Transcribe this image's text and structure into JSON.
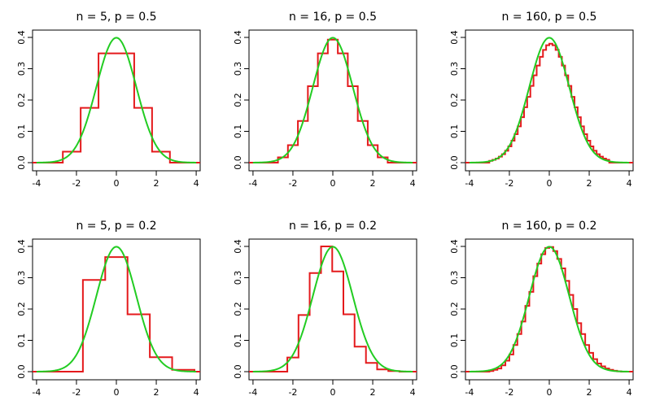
{
  "colors": {
    "histogram": "#e41a1c",
    "normal_curve": "#22cc22",
    "axes": "#000000"
  },
  "chart_data": [
    {
      "type": "line",
      "title": "n = 5, p = 0.5",
      "xlim": [
        -4.2,
        4.2
      ],
      "ylim": [
        0,
        0.4
      ],
      "x_ticks": [
        -4,
        -2,
        0,
        2,
        4
      ],
      "x_tick_labels": [
        "-4",
        "-2",
        "0",
        "2",
        "4"
      ],
      "y_ticks": [
        0,
        0.1,
        0.2,
        0.3,
        0.4
      ],
      "y_tick_labels": [
        "0.0",
        "0.1",
        "0.2",
        "0.3",
        "0.4"
      ],
      "series": [
        {
          "kind": "step_histogram",
          "edges": [
            -4.2,
            -2.683,
            -1.789,
            -0.894,
            0.894,
            1.789,
            2.683,
            4.2
          ],
          "heights": [
            0,
            0.035,
            0.175,
            0.349,
            0.175,
            0.035,
            0
          ]
        },
        {
          "kind": "normal_density",
          "mean": 0,
          "sd": 1,
          "x_range": [
            -4,
            4
          ]
        }
      ]
    },
    {
      "type": "line",
      "title": "n = 16, p = 0.5",
      "xlim": [
        -4.2,
        4.2
      ],
      "ylim": [
        0,
        0.4
      ],
      "x_ticks": [
        -4,
        -2,
        0,
        2,
        4
      ],
      "x_tick_labels": [
        "-4",
        "-2",
        "0",
        "2",
        "4"
      ],
      "y_ticks": [
        0,
        0.1,
        0.2,
        0.3,
        0.4
      ],
      "y_tick_labels": [
        "0.0",
        "0.1",
        "0.2",
        "0.3",
        "0.4"
      ],
      "series": [
        {
          "kind": "step_histogram",
          "edges": [
            -4.2,
            -2.75,
            -2.25,
            -1.75,
            -1.25,
            -0.75,
            -0.25,
            0.25,
            0.75,
            1.25,
            1.75,
            2.25,
            2.75,
            4.2
          ],
          "heights": [
            0,
            0.017,
            0.056,
            0.133,
            0.244,
            0.349,
            0.393,
            0.349,
            0.244,
            0.133,
            0.056,
            0.017,
            0
          ]
        },
        {
          "kind": "normal_density",
          "mean": 0,
          "sd": 1,
          "x_range": [
            -4,
            4
          ]
        }
      ]
    },
    {
      "type": "line",
      "title": "n = 160, p = 0.5",
      "xlim": [
        -4.2,
        4.2
      ],
      "ylim": [
        0,
        0.4
      ],
      "x_ticks": [
        -4,
        -2,
        0,
        2,
        4
      ],
      "x_tick_labels": [
        "-4",
        "-2",
        "0",
        "2",
        "4"
      ],
      "y_ticks": [
        0,
        0.1,
        0.2,
        0.3,
        0.4
      ],
      "y_tick_labels": [
        "0.0",
        "0.1",
        "0.2",
        "0.3",
        "0.4"
      ],
      "series": [
        {
          "kind": "step_histogram",
          "edges": [
            -4.2,
            -3.004,
            -2.846,
            -2.688,
            -2.53,
            -2.372,
            -2.213,
            -2.055,
            -1.897,
            -1.739,
            -1.581,
            -1.423,
            -1.265,
            -1.107,
            -0.949,
            -0.791,
            -0.632,
            -0.474,
            -0.316,
            -0.158,
            0.0,
            0.158,
            0.316,
            0.474,
            0.632,
            0.791,
            0.949,
            1.107,
            1.265,
            1.423,
            1.581,
            1.739,
            1.897,
            2.055,
            2.213,
            2.372,
            2.53,
            2.688,
            2.846,
            3.004,
            4.2
          ],
          "heights": [
            0,
            0.006,
            0.009,
            0.013,
            0.019,
            0.027,
            0.038,
            0.052,
            0.07,
            0.091,
            0.116,
            0.145,
            0.177,
            0.21,
            0.245,
            0.279,
            0.31,
            0.338,
            0.36,
            0.375,
            0.38,
            0.375,
            0.36,
            0.338,
            0.31,
            0.279,
            0.245,
            0.21,
            0.177,
            0.145,
            0.116,
            0.091,
            0.07,
            0.052,
            0.038,
            0.027,
            0.019,
            0.013,
            0.009,
            0
          ]
        },
        {
          "kind": "normal_density",
          "mean": 0,
          "sd": 1,
          "x_range": [
            -4,
            4
          ]
        }
      ]
    },
    {
      "type": "line",
      "title": "n = 5, p = 0.2",
      "xlim": [
        -4.2,
        4.2
      ],
      "ylim": [
        0,
        0.4
      ],
      "x_ticks": [
        -4,
        -2,
        0,
        2,
        4
      ],
      "x_tick_labels": [
        "-4",
        "-2",
        "0",
        "2",
        "4"
      ],
      "y_ticks": [
        0,
        0.1,
        0.2,
        0.3,
        0.4
      ],
      "y_tick_labels": [
        "0.0",
        "0.1",
        "0.2",
        "0.3",
        "0.4"
      ],
      "series": [
        {
          "kind": "step_histogram",
          "edges": [
            -4.2,
            -1.677,
            -0.559,
            0.559,
            1.677,
            2.795,
            3.913,
            4.2
          ],
          "heights": [
            0,
            0.293,
            0.366,
            0.183,
            0.046,
            0.006,
            0
          ]
        },
        {
          "kind": "normal_density",
          "mean": 0,
          "sd": 1,
          "x_range": [
            -4,
            4
          ]
        }
      ]
    },
    {
      "type": "line",
      "title": "n = 16, p = 0.2",
      "xlim": [
        -4.2,
        4.2
      ],
      "ylim": [
        0,
        0.4
      ],
      "x_ticks": [
        -4,
        -2,
        0,
        2,
        4
      ],
      "x_tick_labels": [
        "-4",
        "-2",
        "0",
        "2",
        "4"
      ],
      "y_ticks": [
        0,
        0.1,
        0.2,
        0.3,
        0.4
      ],
      "y_tick_labels": [
        "0.0",
        "0.1",
        "0.2",
        "0.3",
        "0.4"
      ],
      "series": [
        {
          "kind": "step_histogram",
          "edges": [
            -4.2,
            -2.28,
            -1.72,
            -1.16,
            -0.59,
            -0.03,
            0.53,
            1.09,
            1.66,
            2.22,
            2.78,
            3.34,
            3.91,
            4.2
          ],
          "heights": [
            0,
            0.045,
            0.181,
            0.315,
            0.4,
            0.32,
            0.183,
            0.08,
            0.028,
            0.007,
            0.002,
            0.0,
            0
          ]
        },
        {
          "kind": "normal_density",
          "mean": 0,
          "sd": 1,
          "x_range": [
            -4,
            4
          ]
        }
      ]
    },
    {
      "type": "line",
      "title": "n = 160, p = 0.2",
      "xlim": [
        -4.2,
        4.2
      ],
      "ylim": [
        0,
        0.4
      ],
      "x_ticks": [
        -4,
        -2,
        0,
        2,
        4
      ],
      "x_tick_labels": [
        "-4",
        "-2",
        "0",
        "2",
        "4"
      ],
      "y_ticks": [
        0,
        0.1,
        0.2,
        0.3,
        0.4
      ],
      "y_tick_labels": [
        "0.0",
        "0.1",
        "0.2",
        "0.3",
        "0.4"
      ],
      "series": [
        {
          "kind": "step_histogram",
          "edges": [
            -4.2,
            -3.0,
            -2.8,
            -2.6,
            -2.4,
            -2.2,
            -2.0,
            -1.8,
            -1.6,
            -1.4,
            -1.2,
            -1.0,
            -0.8,
            -0.6,
            -0.4,
            -0.2,
            0.0,
            0.2,
            0.4,
            0.6,
            0.8,
            1.0,
            1.2,
            1.4,
            1.6,
            1.8,
            2.0,
            2.2,
            2.4,
            2.6,
            2.8,
            3.0,
            3.2,
            3.4,
            3.6,
            4.2
          ],
          "heights": [
            0,
            0.002,
            0.006,
            0.01,
            0.02,
            0.035,
            0.055,
            0.085,
            0.12,
            0.16,
            0.21,
            0.255,
            0.305,
            0.345,
            0.375,
            0.395,
            0.398,
            0.385,
            0.36,
            0.33,
            0.29,
            0.245,
            0.2,
            0.155,
            0.12,
            0.085,
            0.06,
            0.04,
            0.026,
            0.017,
            0.01,
            0.006,
            0.003,
            0.001,
            0
          ]
        },
        {
          "kind": "normal_density",
          "mean": 0,
          "sd": 1,
          "x_range": [
            -4,
            4
          ]
        }
      ]
    }
  ]
}
